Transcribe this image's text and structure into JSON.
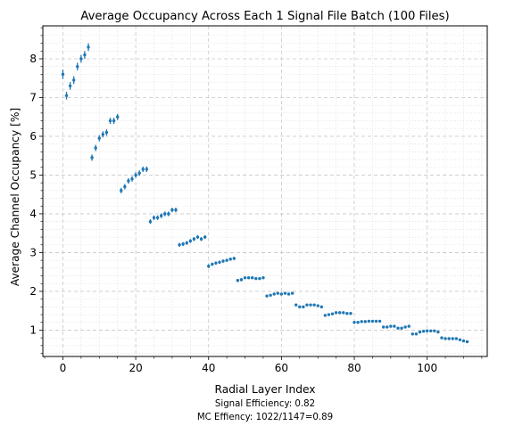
{
  "chart_data": {
    "type": "scatter",
    "title": "Average Occupancy Across Each 1 Signal File Batch (100 Files)",
    "xlabel": "Radial Layer Index",
    "ylabel": "Average Channel Occupancy [%]",
    "xlim": [
      -5.5,
      116.5
    ],
    "ylim": [
      0.32,
      8.85
    ],
    "xticks": [
      0,
      20,
      40,
      60,
      80,
      100
    ],
    "yticks": [
      1,
      2,
      3,
      4,
      5,
      6,
      7,
      8
    ],
    "grid": true,
    "error_bars": true,
    "marker_color": "#1f77b4",
    "annotations": [
      "Signal Efficiency: 0.82",
      "MC Effiency: 1022/1147=0.89"
    ],
    "series": [
      {
        "x": [
          0,
          1,
          2,
          3,
          4,
          5,
          6,
          7,
          8,
          9,
          10,
          11,
          12,
          13,
          14,
          15,
          16,
          17,
          18,
          19,
          20,
          21,
          22,
          23,
          24,
          25,
          26,
          27,
          28,
          29,
          30,
          31,
          32,
          33,
          34,
          35,
          36,
          37,
          38,
          39,
          40,
          41,
          42,
          43,
          44,
          45,
          46,
          47,
          48,
          49,
          50,
          51,
          52,
          53,
          54,
          55,
          56,
          57,
          58,
          59,
          60,
          61,
          62,
          63,
          64,
          65,
          66,
          67,
          68,
          69,
          70,
          71,
          72,
          73,
          74,
          75,
          76,
          77,
          78,
          79,
          80,
          81,
          82,
          83,
          84,
          85,
          86,
          87,
          88,
          89,
          90,
          91,
          92,
          93,
          94,
          95,
          96,
          97,
          98,
          99,
          100,
          101,
          102,
          103,
          104,
          105,
          106,
          107,
          108,
          109,
          110,
          111
        ],
        "y": [
          7.6,
          7.05,
          7.3,
          7.45,
          7.8,
          8.0,
          8.1,
          8.3,
          5.45,
          5.7,
          5.95,
          6.05,
          6.1,
          6.4,
          6.4,
          6.5,
          4.6,
          4.7,
          4.85,
          4.9,
          5.0,
          5.05,
          5.15,
          5.15,
          3.8,
          3.9,
          3.9,
          3.95,
          4.0,
          4.0,
          4.1,
          4.1,
          3.2,
          3.22,
          3.25,
          3.3,
          3.35,
          3.4,
          3.35,
          3.4,
          2.65,
          2.7,
          2.73,
          2.75,
          2.78,
          2.8,
          2.83,
          2.85,
          2.28,
          2.3,
          2.35,
          2.35,
          2.35,
          2.33,
          2.33,
          2.35,
          1.88,
          1.9,
          1.93,
          1.95,
          1.93,
          1.95,
          1.93,
          1.95,
          1.65,
          1.6,
          1.6,
          1.65,
          1.65,
          1.65,
          1.63,
          1.6,
          1.38,
          1.4,
          1.42,
          1.45,
          1.45,
          1.45,
          1.43,
          1.43,
          1.2,
          1.2,
          1.22,
          1.22,
          1.23,
          1.23,
          1.23,
          1.23,
          1.08,
          1.08,
          1.1,
          1.1,
          1.05,
          1.05,
          1.08,
          1.1,
          0.9,
          0.9,
          0.95,
          0.97,
          0.98,
          0.98,
          0.98,
          0.95,
          0.8,
          0.78,
          0.78,
          0.78,
          0.78,
          0.75,
          0.72,
          0.7
        ],
        "yerr": [
          0.12,
          0.1,
          0.1,
          0.1,
          0.1,
          0.1,
          0.1,
          0.1,
          0.08,
          0.08,
          0.08,
          0.08,
          0.08,
          0.08,
          0.08,
          0.08,
          0.07,
          0.07,
          0.07,
          0.07,
          0.07,
          0.07,
          0.07,
          0.07,
          0.06,
          0.06,
          0.06,
          0.06,
          0.06,
          0.06,
          0.06,
          0.06,
          0.05,
          0.05,
          0.05,
          0.05,
          0.05,
          0.05,
          0.05,
          0.05,
          0.05,
          0.04,
          0.04,
          0.04,
          0.04,
          0.04,
          0.04,
          0.04,
          0.04,
          0.04,
          0.03,
          0.03,
          0.03,
          0.03,
          0.03,
          0.03,
          0.03,
          0.03,
          0.03,
          0.03,
          0.03,
          0.03,
          0.03,
          0.03,
          0.03,
          0.03,
          0.03,
          0.03,
          0.03,
          0.03,
          0.03,
          0.03,
          0.02,
          0.02,
          0.02,
          0.02,
          0.02,
          0.02,
          0.02,
          0.02,
          0.02,
          0.02,
          0.02,
          0.02,
          0.02,
          0.02,
          0.02,
          0.02,
          0.02,
          0.02,
          0.02,
          0.02,
          0.02,
          0.02,
          0.02,
          0.02,
          0.02,
          0.02,
          0.02,
          0.02,
          0.02,
          0.02,
          0.02,
          0.02,
          0.02,
          0.02,
          0.02,
          0.02,
          0.02,
          0.02,
          0.02,
          0.02
        ]
      }
    ]
  }
}
